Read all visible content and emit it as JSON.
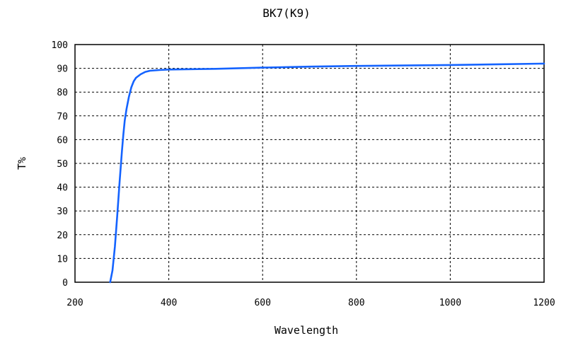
{
  "chart_data": {
    "type": "line",
    "title": "BK7(K9)",
    "xlabel": "Wavelength",
    "ylabel": "T%",
    "xlim": [
      200,
      1200
    ],
    "ylim": [
      0,
      100
    ],
    "x_ticks": [
      200,
      400,
      600,
      800,
      1000,
      1200
    ],
    "y_ticks": [
      0,
      10,
      20,
      30,
      40,
      50,
      60,
      70,
      80,
      90,
      100
    ],
    "grid": true,
    "legend": "none",
    "series_color": "#1463ff",
    "series": [
      {
        "x": [
          275,
          280,
          285,
          290,
          295,
          300,
          303,
          306,
          310,
          315,
          320,
          325,
          330,
          340,
          350,
          360,
          380,
          400,
          500,
          600,
          700,
          800,
          900,
          1000,
          1100,
          1200
        ],
        "y": [
          0,
          5,
          15,
          28,
          42,
          55,
          62,
          68,
          73,
          78,
          82,
          84.5,
          86,
          87.5,
          88.5,
          89,
          89.3,
          89.5,
          89.8,
          90.3,
          90.7,
          91,
          91.2,
          91.4,
          91.7,
          92
        ]
      }
    ]
  }
}
